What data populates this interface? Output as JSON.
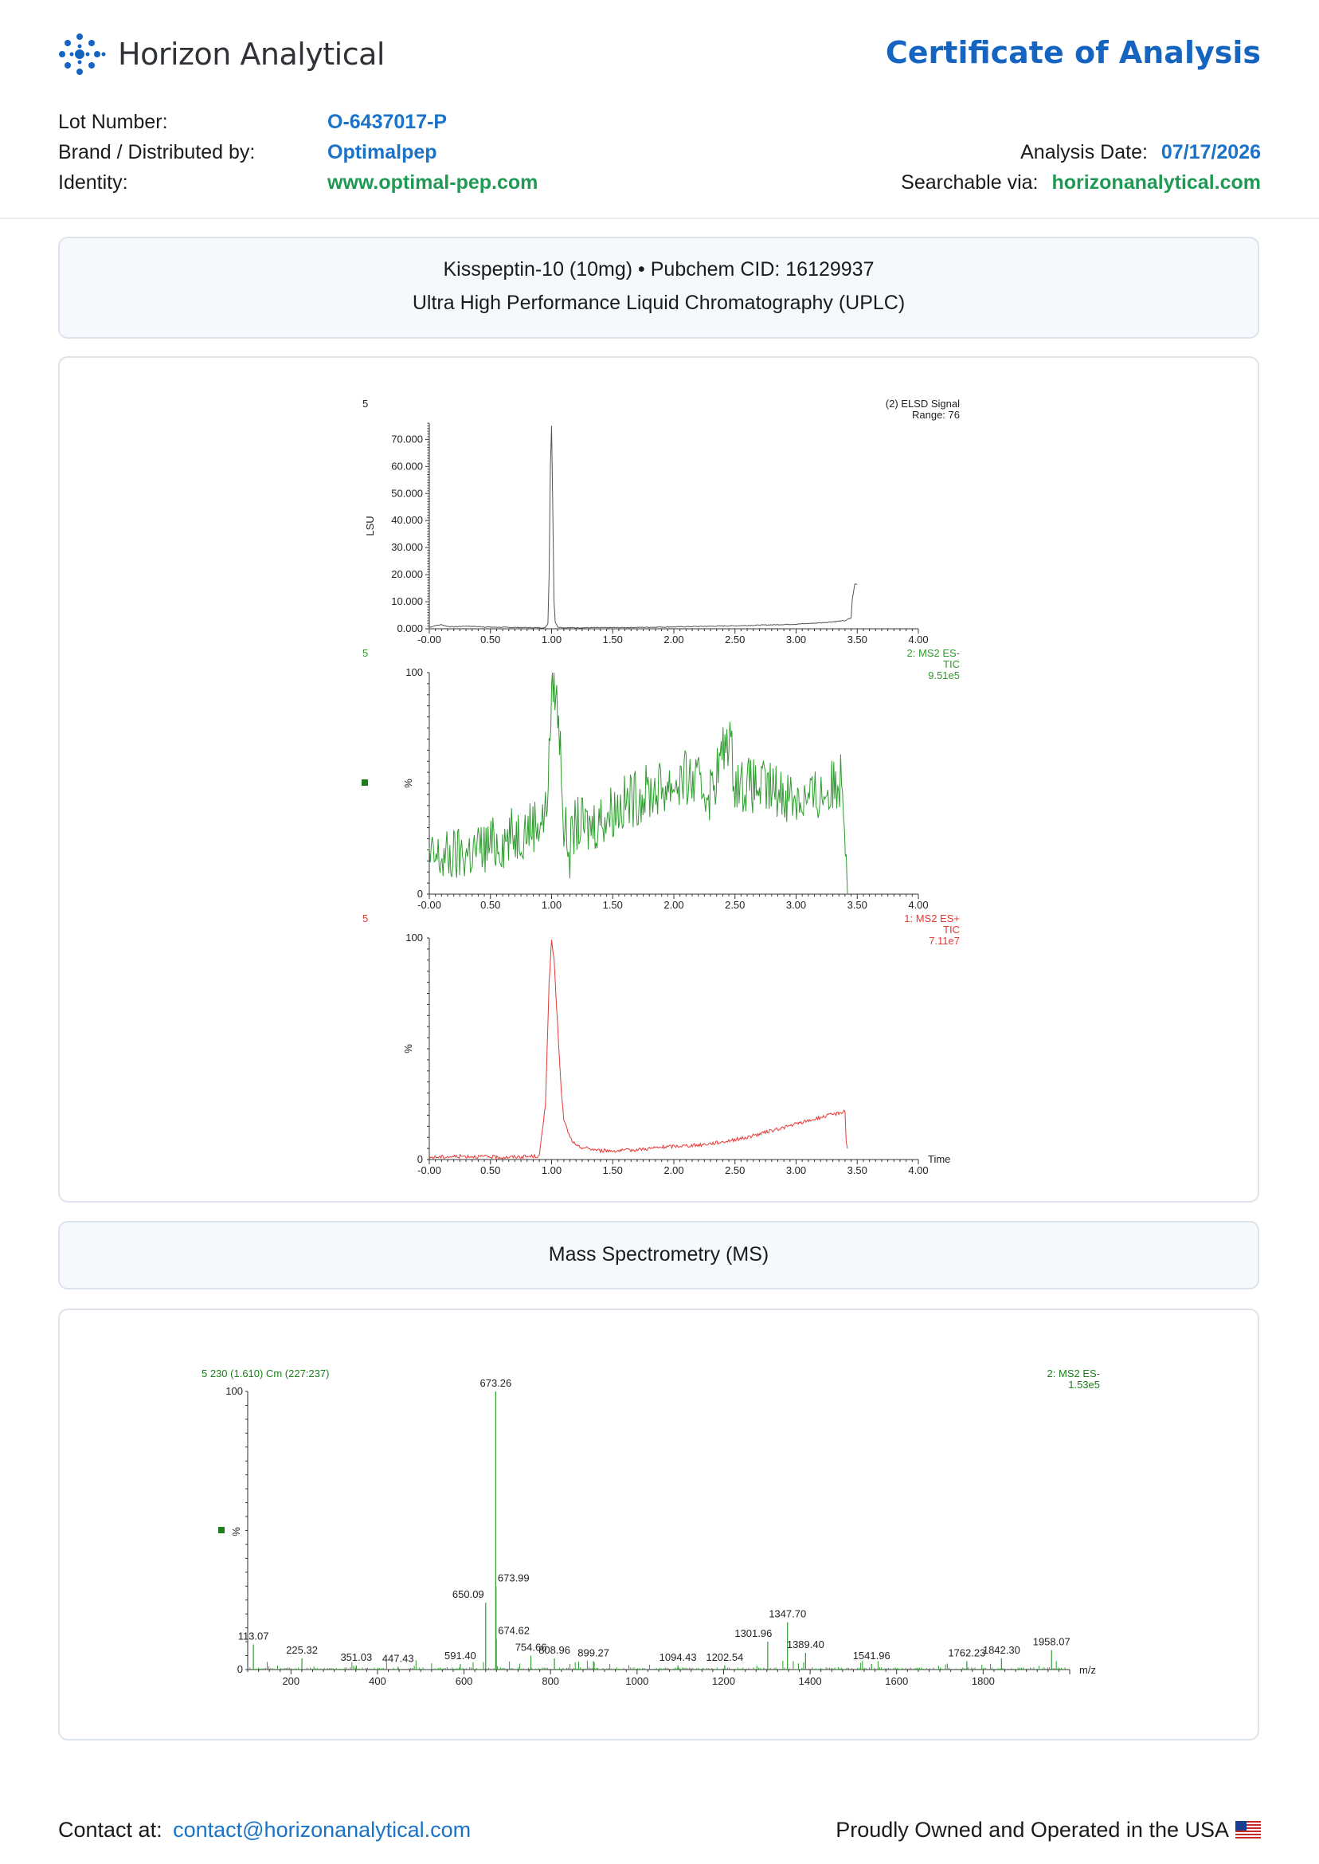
{
  "header": {
    "brand_name": "Horizon Analytical",
    "logo_icon": "molecule-dots-icon",
    "doc_title": "Certificate of Analysis"
  },
  "meta": {
    "lot_label": "Lot Number:",
    "lot_value": "O-6437017-P",
    "brand_label": "Brand / Distributed by:",
    "brand_value": "Optimalpep",
    "identity_label": "Identity:",
    "identity_value": "www.optimal-pep.com",
    "analysis_date_label": "Analysis Date:",
    "analysis_date_value": "07/17/2026",
    "searchable_label": "Searchable via:",
    "searchable_value": "horizonanalytical.com"
  },
  "uplc_section": {
    "line1": "Kisspeptin-10 (10mg) • Pubchem CID: 16129937",
    "line2": "Ultra High Performance Liquid Chromatography (UPLC)"
  },
  "ms_section": {
    "title": "Mass Spectrometry (MS)"
  },
  "footer": {
    "contact_label": "Contact at:",
    "contact_email": "contact@horizonanalytical.com",
    "usa_text": "Proudly Owned and Operated in the USA",
    "flag_icon": "us-flag-icon"
  },
  "colors": {
    "accent_blue": "#1565c0",
    "accent_green": "#1f9a52",
    "elsd_trace": "#555555",
    "es_minus_trace": "#2e9b2e",
    "es_plus_trace": "#e53935"
  },
  "chart_data": [
    {
      "type": "line",
      "corner_label": "5",
      "legend": [
        "(2) ELSD Signal",
        "Range: 76"
      ],
      "ylabel": "LSU",
      "yticks": [
        "0.000",
        "10.000",
        "20.000",
        "30.000",
        "40.000",
        "50.000",
        "60.000",
        "70.000"
      ],
      "xticks": [
        "-0.00",
        "0.50",
        "1.00",
        "1.50",
        "2.00",
        "2.50",
        "3.00",
        "3.50",
        "4.00"
      ],
      "xlim": [
        0,
        4
      ],
      "ylim": [
        0,
        76000
      ],
      "series": [
        {
          "x": [
            0.0,
            0.05,
            0.1,
            0.15,
            0.2,
            0.3,
            0.5,
            0.7,
            0.9,
            0.95,
            0.97,
            0.98,
            0.99,
            1.0,
            1.01,
            1.02,
            1.03,
            1.05,
            1.1,
            1.3,
            1.6,
            2.0,
            2.5,
            3.0,
            3.2,
            3.4,
            3.45,
            3.46,
            3.48,
            3.5
          ],
          "y": [
            500,
            1200,
            1500,
            900,
            700,
            1000,
            600,
            500,
            400,
            450,
            2000,
            20000,
            60000,
            75000,
            45000,
            10000,
            2500,
            700,
            400,
            400,
            450,
            700,
            1100,
            1700,
            2200,
            3000,
            4000,
            11000,
            16500,
            16500
          ]
        }
      ]
    },
    {
      "type": "line",
      "corner_label": "5",
      "legend": [
        "2: MS2 ES-",
        "TIC",
        "9.51e5"
      ],
      "ylabel": "%",
      "yticks": [
        "0",
        "100"
      ],
      "xticks": [
        "-0.00",
        "0.50",
        "1.00",
        "1.50",
        "2.00",
        "2.50",
        "3.00",
        "3.50",
        "4.00"
      ],
      "xlim": [
        0,
        4
      ],
      "ylim": [
        0,
        100
      ],
      "series": [
        {
          "x": [
            0.0,
            0.2,
            0.4,
            0.6,
            0.8,
            0.95,
            0.98,
            1.0,
            1.02,
            1.05,
            1.08,
            1.1,
            1.15,
            1.2,
            1.3,
            1.5,
            1.7,
            1.9,
            2.1,
            2.3,
            2.45,
            2.5,
            2.55,
            2.7,
            2.9,
            3.1,
            3.3,
            3.38,
            3.41,
            3.42
          ],
          "y": [
            15,
            17,
            20,
            24,
            30,
            35,
            60,
            92,
            98,
            82,
            60,
            30,
            20,
            32,
            30,
            38,
            44,
            48,
            52,
            46,
            72,
            52,
            50,
            48,
            46,
            42,
            48,
            54,
            20,
            0
          ]
        }
      ]
    },
    {
      "type": "line",
      "corner_label": "5",
      "legend": [
        "1: MS2 ES+",
        "TIC",
        "7.11e7"
      ],
      "ylabel": "%",
      "yticks": [
        "0",
        "100"
      ],
      "xticks": [
        "-0.00",
        "0.50",
        "1.00",
        "1.50",
        "2.00",
        "2.50",
        "3.00",
        "3.50",
        "4.00"
      ],
      "xlabel": "Time",
      "xlim": [
        0,
        4
      ],
      "ylim": [
        0,
        100
      ],
      "series": [
        {
          "x": [
            0.0,
            0.3,
            0.6,
            0.9,
            0.95,
            0.98,
            1.0,
            1.02,
            1.05,
            1.08,
            1.1,
            1.15,
            1.2,
            1.4,
            1.6,
            1.8,
            2.0,
            2.2,
            2.4,
            2.6,
            2.8,
            3.0,
            3.2,
            3.35,
            3.4,
            3.41,
            3.42
          ],
          "y": [
            1,
            1.5,
            1,
            1.5,
            25,
            80,
            99,
            90,
            60,
            30,
            18,
            10,
            6,
            4,
            4,
            5,
            6,
            6.5,
            8,
            10,
            13,
            16,
            19,
            21,
            22,
            8,
            5
          ]
        }
      ]
    },
    {
      "type": "bar",
      "header_left": "5 230 (1.610) Cm (227:237)",
      "legend": [
        "2: MS2 ES-",
        "1.53e5"
      ],
      "ylabel": "%",
      "yticks": [
        "0",
        "100"
      ],
      "xticks": [
        "200",
        "400",
        "600",
        "800",
        "1000",
        "1200",
        "1400",
        "1600",
        "1800"
      ],
      "xlabel": "m/z",
      "xlim": [
        100,
        2000
      ],
      "ylim": [
        0,
        100
      ],
      "peaks": [
        {
          "mz": 113.07,
          "intensity": 9,
          "label": "113.07"
        },
        {
          "mz": 225.32,
          "intensity": 4,
          "label": "225.32"
        },
        {
          "mz": 351.03,
          "intensity": 1.5,
          "label": "351.03"
        },
        {
          "mz": 447.43,
          "intensity": 1,
          "label": "447.43"
        },
        {
          "mz": 591.4,
          "intensity": 2,
          "label": "591.40"
        },
        {
          "mz": 650.09,
          "intensity": 24,
          "label": "650.09"
        },
        {
          "mz": 673.26,
          "intensity": 100,
          "label": "673.26"
        },
        {
          "mz": 673.99,
          "intensity": 30,
          "label": "673.99"
        },
        {
          "mz": 674.62,
          "intensity": 11,
          "label": "674.62"
        },
        {
          "mz": 754.66,
          "intensity": 5,
          "label": "754.66"
        },
        {
          "mz": 808.96,
          "intensity": 4,
          "label": "808.96"
        },
        {
          "mz": 899.27,
          "intensity": 3,
          "label": "899.27"
        },
        {
          "mz": 1094.43,
          "intensity": 1.5,
          "label": "1094.43"
        },
        {
          "mz": 1202.54,
          "intensity": 1.5,
          "label": "1202.54"
        },
        {
          "mz": 1301.96,
          "intensity": 10,
          "label": "1301.96"
        },
        {
          "mz": 1347.7,
          "intensity": 17,
          "label": "1347.70"
        },
        {
          "mz": 1389.4,
          "intensity": 6,
          "label": "1389.40"
        },
        {
          "mz": 1541.96,
          "intensity": 2,
          "label": "1541.96"
        },
        {
          "mz": 1762.23,
          "intensity": 3,
          "label": "1762.23"
        },
        {
          "mz": 1842.3,
          "intensity": 4,
          "label": "1842.30"
        },
        {
          "mz": 1958.07,
          "intensity": 7,
          "label": "1958.07"
        }
      ]
    }
  ]
}
